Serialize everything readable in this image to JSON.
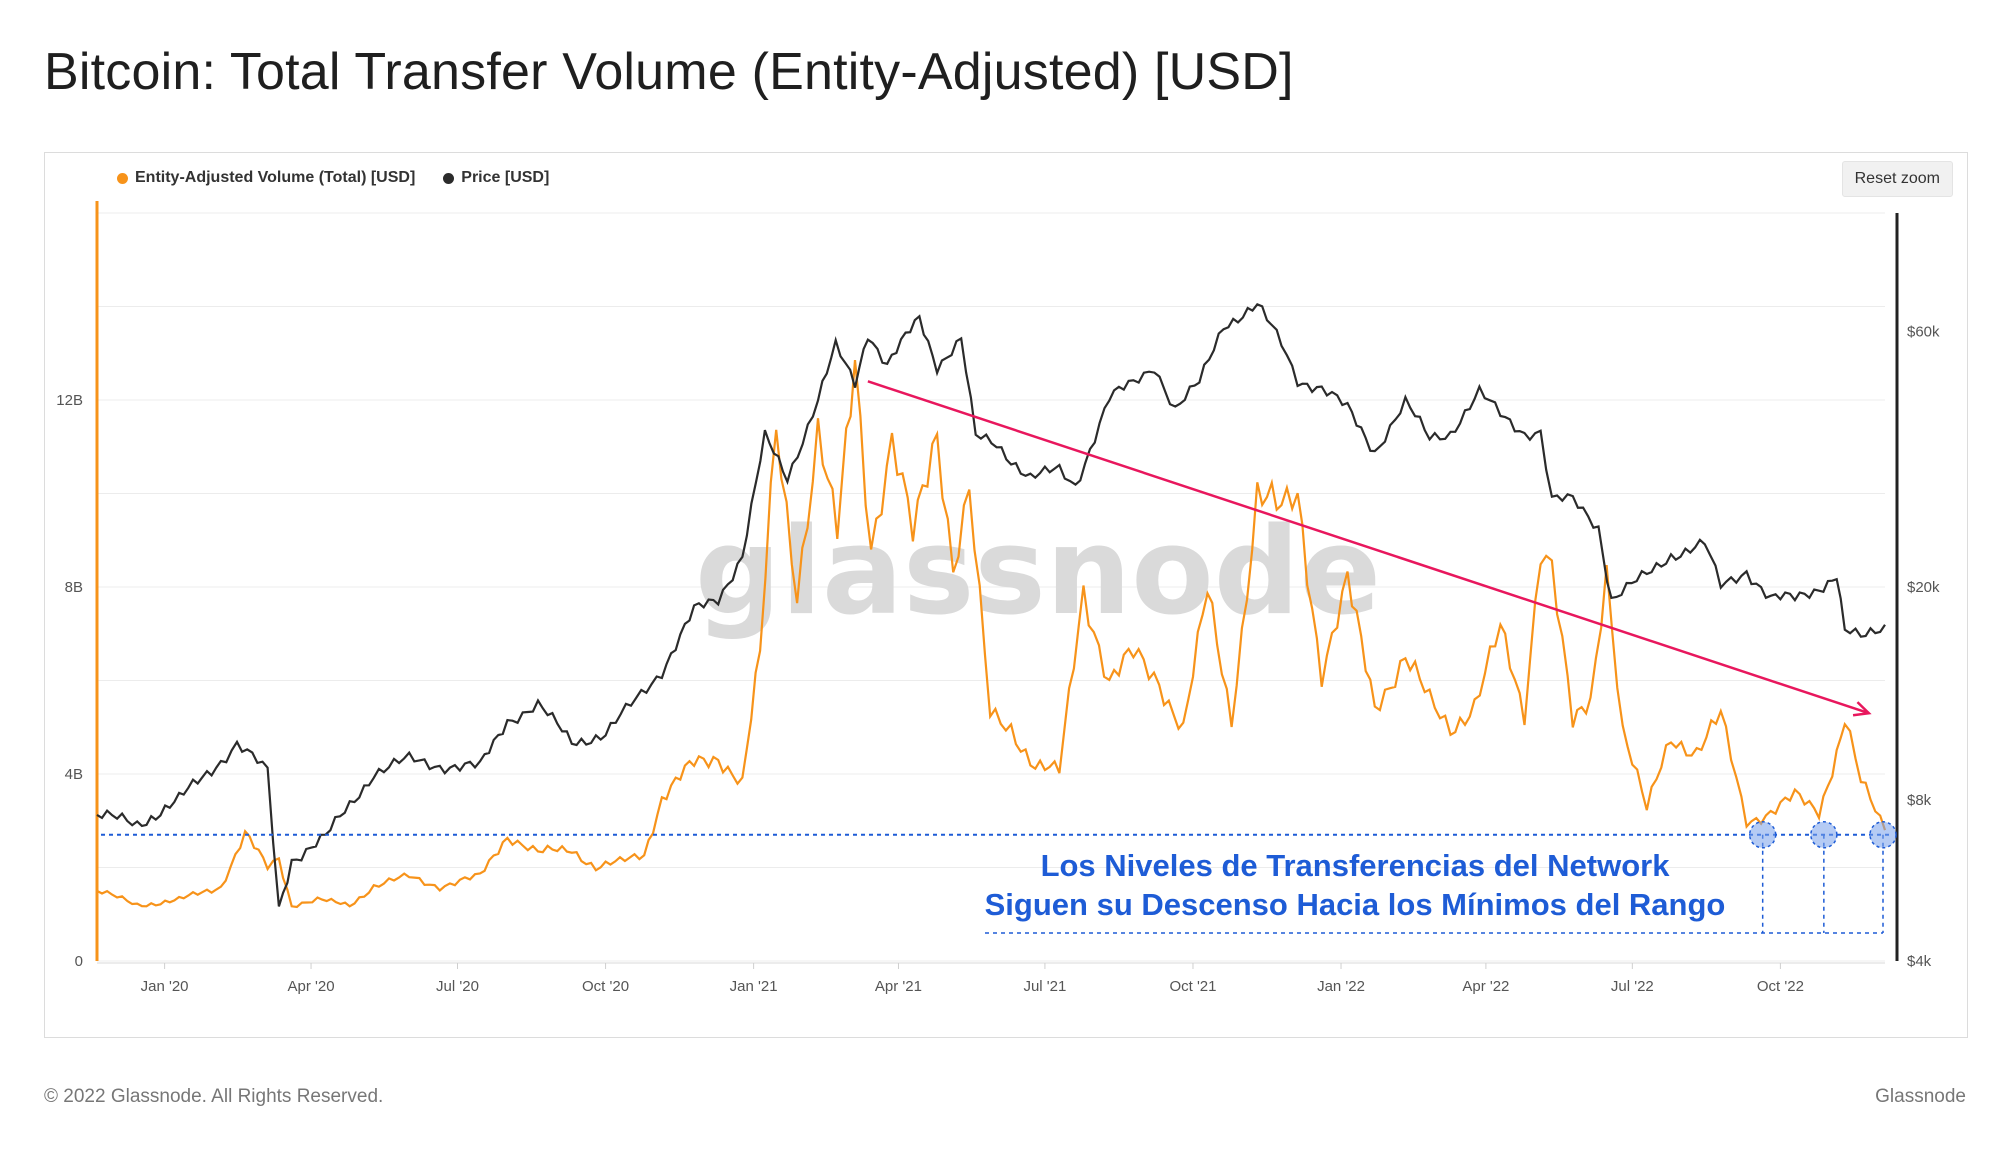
{
  "title": "Bitcoin: Total Transfer Volume (Entity-Adjusted) [USD]",
  "reset_zoom_label": "Reset zoom",
  "watermark": "glassnode",
  "footer": {
    "copyright": "© 2022 Glassnode. All Rights Reserved.",
    "brand": "Glassnode"
  },
  "annotation": {
    "line1": "Los Niveles de Transferencias del Network",
    "line2": "Siguen su Descenso Hacia los Mínimos del Rango"
  },
  "colors": {
    "volume": "#f7931a",
    "price": "#2b2b2b",
    "trend": "#e8175d",
    "annotation": "#1e5cd6"
  },
  "chart_data": {
    "type": "line",
    "title": "Bitcoin: Total Transfer Volume (Entity-Adjusted) [USD]",
    "legend_position": "top-left",
    "x_tick_labels": [
      "Jan '20",
      "Apr '20",
      "Jul '20",
      "Oct '20",
      "Jan '21",
      "Apr '21",
      "Jul '21",
      "Oct '21",
      "Jan '22",
      "Apr '22",
      "Jul '22",
      "Oct '22"
    ],
    "x_range": [
      "2019-11-20",
      "2022-12-05"
    ],
    "y_left": {
      "ticks": [
        0,
        4,
        8,
        12
      ],
      "tick_labels": [
        "0",
        "4B",
        "8B",
        "12B"
      ],
      "range": [
        0,
        16
      ],
      "unit": "B USD"
    },
    "y_right": {
      "scale": "log",
      "ticks": [
        4000,
        8000,
        20000,
        60000
      ],
      "tick_labels": [
        "$4k",
        "$8k",
        "$20k",
        "$60k"
      ],
      "range": [
        4000,
        100000
      ]
    },
    "series": [
      {
        "name": "Entity-Adjusted Volume (Total) [USD]",
        "axis": "left",
        "unit": "B USD",
        "x": [
          "2019-11-20",
          "2019-12-15",
          "2020-01-10",
          "2020-02-05",
          "2020-02-20",
          "2020-03-05",
          "2020-03-12",
          "2020-03-20",
          "2020-04-05",
          "2020-04-25",
          "2020-05-10",
          "2020-06-01",
          "2020-06-20",
          "2020-07-15",
          "2020-08-01",
          "2020-08-20",
          "2020-09-10",
          "2020-09-25",
          "2020-10-10",
          "2020-10-25",
          "2020-11-05",
          "2020-11-25",
          "2020-12-10",
          "2020-12-25",
          "2021-01-05",
          "2021-01-15",
          "2021-01-28",
          "2021-02-10",
          "2021-02-22",
          "2021-03-05",
          "2021-03-15",
          "2021-03-28",
          "2021-04-10",
          "2021-04-25",
          "2021-05-05",
          "2021-05-15",
          "2021-05-28",
          "2021-06-10",
          "2021-06-25",
          "2021-07-10",
          "2021-07-25",
          "2021-08-10",
          "2021-08-25",
          "2021-09-10",
          "2021-09-25",
          "2021-10-10",
          "2021-10-25",
          "2021-11-10",
          "2021-11-25",
          "2021-12-05",
          "2021-12-20",
          "2022-01-05",
          "2022-01-22",
          "2022-02-10",
          "2022-02-25",
          "2022-03-10",
          "2022-03-25",
          "2022-04-10",
          "2022-04-25",
          "2022-05-05",
          "2022-05-12",
          "2022-05-25",
          "2022-06-05",
          "2022-06-15",
          "2022-06-25",
          "2022-07-10",
          "2022-07-25",
          "2022-08-10",
          "2022-08-25",
          "2022-09-10",
          "2022-09-25",
          "2022-10-10",
          "2022-10-25",
          "2022-11-05",
          "2022-11-10",
          "2022-11-20",
          "2022-12-05"
        ],
        "values": [
          1.5,
          1.2,
          1.3,
          1.6,
          2.7,
          2.0,
          2.2,
          1.2,
          1.3,
          1.2,
          1.6,
          1.8,
          1.6,
          1.8,
          2.7,
          2.3,
          2.4,
          2.0,
          2.1,
          2.3,
          3.5,
          4.2,
          4.4,
          3.8,
          6.5,
          11.5,
          8.0,
          11.2,
          9.0,
          13.0,
          9.0,
          11.0,
          9.0,
          11.5,
          8.5,
          10.0,
          5.2,
          5.0,
          4.2,
          4.0,
          8.0,
          6.0,
          6.5,
          6.0,
          5.0,
          7.8,
          5.2,
          10.0,
          9.5,
          10.0,
          6.2,
          8.0,
          5.5,
          6.5,
          5.5,
          5.0,
          5.5,
          7.0,
          5.3,
          9.0,
          8.5,
          5.0,
          5.5,
          8.5,
          5.0,
          3.2,
          4.8,
          4.5,
          5.2,
          3.0,
          3.2,
          3.5,
          3.2,
          4.5,
          5.2,
          3.8,
          2.8
        ]
      },
      {
        "name": "Price [USD]",
        "axis": "right",
        "unit": "USD",
        "x": [
          "2019-11-20",
          "2019-12-15",
          "2020-01-10",
          "2020-02-05",
          "2020-02-15",
          "2020-03-05",
          "2020-03-12",
          "2020-03-20",
          "2020-04-10",
          "2020-05-10",
          "2020-06-01",
          "2020-06-20",
          "2020-07-15",
          "2020-08-01",
          "2020-08-20",
          "2020-09-10",
          "2020-10-01",
          "2020-10-20",
          "2020-11-05",
          "2020-11-25",
          "2020-12-10",
          "2020-12-25",
          "2021-01-08",
          "2021-01-22",
          "2021-02-10",
          "2021-02-21",
          "2021-03-05",
          "2021-03-13",
          "2021-03-25",
          "2021-04-14",
          "2021-04-25",
          "2021-05-10",
          "2021-05-19",
          "2021-06-01",
          "2021-06-22",
          "2021-07-10",
          "2021-07-20",
          "2021-08-10",
          "2021-08-25",
          "2021-09-07",
          "2021-09-20",
          "2021-10-05",
          "2021-10-20",
          "2021-11-10",
          "2021-11-25",
          "2021-12-05",
          "2021-12-20",
          "2022-01-05",
          "2022-01-22",
          "2022-02-10",
          "2022-02-25",
          "2022-03-10",
          "2022-03-28",
          "2022-04-10",
          "2022-04-25",
          "2022-05-05",
          "2022-05-12",
          "2022-05-25",
          "2022-06-10",
          "2022-06-18",
          "2022-07-10",
          "2022-07-25",
          "2022-08-15",
          "2022-08-25",
          "2022-09-10",
          "2022-09-25",
          "2022-10-10",
          "2022-10-25",
          "2022-11-05",
          "2022-11-10",
          "2022-11-20",
          "2022-12-05"
        ],
        "values": [
          7500,
          7200,
          8000,
          9500,
          10200,
          9000,
          5000,
          6200,
          6800,
          9000,
          9500,
          9300,
          9200,
          11300,
          12000,
          10300,
          10600,
          12300,
          14000,
          18000,
          19000,
          23000,
          38000,
          32000,
          45000,
          56000,
          48000,
          60000,
          52000,
          63500,
          52000,
          58000,
          38000,
          37000,
          32000,
          33000,
          31000,
          45000,
          48000,
          52000,
          43000,
          48000,
          62000,
          67000,
          57000,
          49000,
          47000,
          43000,
          36000,
          44000,
          38000,
          39000,
          46000,
          42000,
          39000,
          39000,
          29000,
          29000,
          26000,
          19000,
          21000,
          23000,
          24000,
          20000,
          21500,
          19000,
          19000,
          20000,
          21000,
          16500,
          16000,
          17000
        ]
      }
    ],
    "annotations": [
      {
        "type": "trend_line",
        "from": {
          "x": "2021-03-13",
          "y": 12.4
        },
        "to": {
          "x": "2022-11-25",
          "y": 5.3
        },
        "color": "#e8175d"
      },
      {
        "type": "horizontal_level",
        "y": 2.7,
        "color": "#1e5cd6",
        "style": "dotted"
      },
      {
        "type": "markers",
        "points": [
          {
            "x": "2022-09-20",
            "y": 2.7
          },
          {
            "x": "2022-10-28",
            "y": 2.7
          },
          {
            "x": "2022-12-05",
            "y": 2.7
          }
        ]
      }
    ]
  }
}
